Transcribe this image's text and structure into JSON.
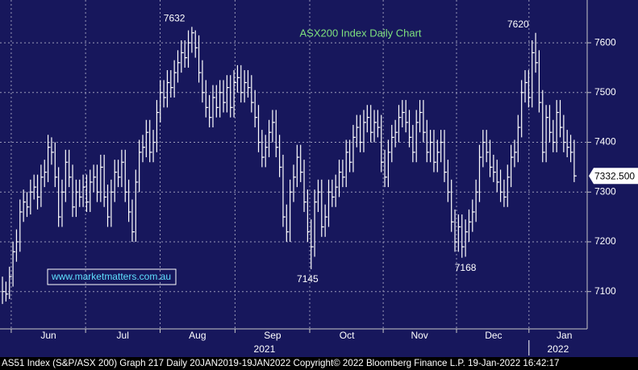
{
  "chart_data": {
    "type": "hlc",
    "title": "ASX200 Index Daily Chart",
    "watermark": "www.marketmatters.com.au",
    "footer": "AS51 Index (S&P/ASX 200) Graph 217  Daily 20JAN2019-19JAN2022 Copyright© 2022 Bloomberg Finance L.P. 19-Jan-2022 16:42:17",
    "color": "#ffffff",
    "grid": true,
    "ylim": [
      7025,
      7686
    ],
    "yticks": [
      7100,
      7200,
      7300,
      7400,
      7500,
      7600
    ],
    "xlim": [
      -0.7,
      166.7
    ],
    "xticks": [
      {
        "value": 13.1,
        "label": "Jun"
      },
      {
        "value": 34.3,
        "label": "Jul"
      },
      {
        "value": 55.6,
        "label": "Aug"
      },
      {
        "value": 77,
        "label": "Sep"
      },
      {
        "value": 98.2,
        "label": "Oct"
      },
      {
        "value": 118.9,
        "label": "Nov"
      },
      {
        "value": 140,
        "label": "Dec"
      },
      {
        "value": 160.2,
        "label": "Jan"
      }
    ],
    "year_labels": [
      {
        "value": 74.7,
        "label": "2021"
      },
      {
        "value": 158.4,
        "label": "2022"
      }
    ],
    "annotations": [
      {
        "x": 49,
        "y": 7632,
        "side": "above"
      },
      {
        "x": 87,
        "y": 7145,
        "side": "below"
      },
      {
        "x": 132,
        "y": 7168,
        "side": "below"
      },
      {
        "x": 147,
        "y": 7620,
        "side": "above"
      }
    ],
    "last_value_label": "7332.500",
    "high": [
      7130,
      7120,
      7150,
      7200,
      7225,
      7285,
      7305,
      7300,
      7325,
      7335,
      7335,
      7355,
      7365,
      7415,
      7410,
      7400,
      7350,
      7325,
      7385,
      7385,
      7355,
      7325,
      7325,
      7335,
      7335,
      7345,
      7355,
      7355,
      7375,
      7375,
      7315,
      7325,
      7365,
      7365,
      7385,
      7385,
      7325,
      7285,
      7345,
      7405,
      7415,
      7445,
      7445,
      7425,
      7485,
      7525,
      7525,
      7545,
      7545,
      7565,
      7585,
      7605,
      7605,
      7625,
      7632,
      7625,
      7615,
      7565,
      7525,
      7495,
      7515,
      7515,
      7525,
      7525,
      7535,
      7535,
      7545,
      7555,
      7555,
      7545,
      7545,
      7535,
      7505,
      7475,
      7425,
      7415,
      7445,
      7465,
      7465,
      7415,
      7375,
      7275,
      7325,
      7355,
      7395,
      7395,
      7365,
      7305,
      7245,
      7305,
      7325,
      7325,
      7275,
      7325,
      7325,
      7335,
      7365,
      7365,
      7405,
      7405,
      7435,
      7455,
      7455,
      7465,
      7475,
      7475,
      7465,
      7465,
      7455,
      7385,
      7405,
      7435,
      7445,
      7475,
      7485,
      7485,
      7465,
      7435,
      7465,
      7485,
      7485,
      7445,
      7425,
      7425,
      7405,
      7425,
      7425,
      7365,
      7325,
      7265,
      7255,
      7255,
      7245,
      7265,
      7285,
      7325,
      7395,
      7425,
      7425,
      7405,
      7375,
      7365,
      7345,
      7325,
      7355,
      7395,
      7405,
      7455,
      7525,
      7545,
      7545,
      7605,
      7620,
      7585,
      7505,
      7475,
      7475,
      7445,
      7485,
      7485,
      7455,
      7425,
      7415,
      7405
    ],
    "low": [
      7075,
      7080,
      7085,
      7110,
      7160,
      7180,
      7240,
      7250,
      7255,
      7285,
      7265,
      7270,
      7310,
      7320,
      7355,
      7310,
      7230,
      7230,
      7280,
      7310,
      7250,
      7250,
      7270,
      7270,
      7260,
      7260,
      7300,
      7280,
      7280,
      7270,
      7230,
      7230,
      7280,
      7310,
      7310,
      7280,
      7240,
      7200,
      7200,
      7300,
      7360,
      7370,
      7360,
      7360,
      7380,
      7440,
      7470,
      7470,
      7490,
      7490,
      7520,
      7540,
      7550,
      7550,
      7580,
      7570,
      7520,
      7480,
      7450,
      7430,
      7430,
      7450,
      7450,
      7460,
      7460,
      7450,
      7450,
      7500,
      7480,
      7480,
      7490,
      7460,
      7430,
      7380,
      7350,
      7350,
      7370,
      7400,
      7370,
      7330,
      7230,
      7200,
      7200,
      7280,
      7310,
      7320,
      7260,
      7200,
      7145,
      7170,
      7260,
      7210,
      7210,
      7230,
      7270,
      7270,
      7290,
      7310,
      7310,
      7340,
      7340,
      7390,
      7380,
      7380,
      7420,
      7400,
      7400,
      7410,
      7340,
      7310,
      7310,
      7360,
      7390,
      7400,
      7430,
      7420,
      7390,
      7360,
      7360,
      7420,
      7400,
      7360,
      7360,
      7340,
      7340,
      7360,
      7320,
      7280,
      7220,
      7180,
      7180,
      7168,
      7170,
      7200,
      7220,
      7240,
      7280,
      7350,
      7360,
      7330,
      7320,
      7300,
      7280,
      7270,
      7270,
      7310,
      7350,
      7360,
      7410,
      7480,
      7470,
      7470,
      7540,
      7460,
      7360,
      7360,
      7400,
      7380,
      7380,
      7410,
      7380,
      7370,
      7360,
      7320
    ],
    "close": [
      7100,
      7095,
      7130,
      7180,
      7200,
      7260,
      7280,
      7270,
      7300,
      7310,
      7290,
      7330,
      7340,
      7390,
      7380,
      7330,
      7250,
      7300,
      7360,
      7330,
      7270,
      7300,
      7290,
      7310,
      7280,
      7320,
      7330,
      7300,
      7350,
      7290,
      7250,
      7300,
      7340,
      7330,
      7360,
      7300,
      7260,
      7220,
      7320,
      7380,
      7390,
      7420,
      7380,
      7400,
      7460,
      7500,
      7490,
      7520,
      7510,
      7540,
      7560,
      7580,
      7570,
      7600,
      7620,
      7590,
      7540,
      7500,
      7470,
      7450,
      7490,
      7470,
      7500,
      7480,
      7510,
      7470,
      7520,
      7530,
      7500,
      7520,
      7510,
      7480,
      7450,
      7400,
      7370,
      7390,
      7420,
      7440,
      7390,
      7350,
      7250,
      7220,
      7300,
      7330,
      7370,
      7340,
      7280,
      7220,
      7190,
      7280,
      7300,
      7230,
      7250,
      7300,
      7290,
      7310,
      7340,
      7330,
      7380,
      7360,
      7410,
      7430,
      7400,
      7440,
      7450,
      7420,
      7440,
      7430,
      7360,
      7330,
      7380,
      7410,
      7420,
      7450,
      7460,
      7440,
      7410,
      7380,
      7440,
      7460,
      7420,
      7380,
      7400,
      7360,
      7380,
      7400,
      7340,
      7300,
      7240,
      7200,
      7230,
      7190,
      7220,
      7240,
      7260,
      7300,
      7370,
      7400,
      7380,
      7350,
      7340,
      7320,
      7300,
      7290,
      7330,
      7370,
      7380,
      7430,
      7500,
      7520,
      7490,
      7580,
      7560,
      7480,
      7380,
      7450,
      7420,
      7400,
      7460,
      7430,
      7400,
      7390,
      7380,
      7332.5
    ]
  }
}
